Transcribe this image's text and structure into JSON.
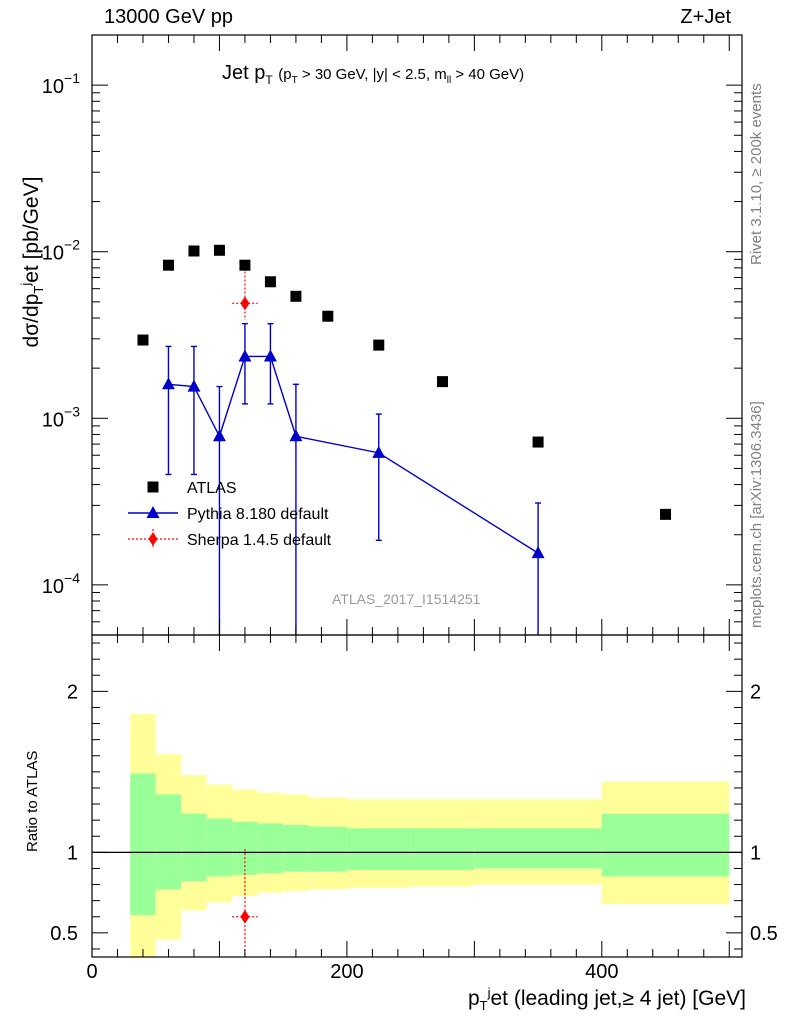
{
  "header": {
    "left": "13000 GeV pp",
    "right": "Z+Jet"
  },
  "side_labels": {
    "rivet": "Rivet 3.1.10, ≥ 200k events",
    "mcplots": "mcplots.cern.ch [arXiv:1306.3436]"
  },
  "chart_data": [
    {
      "type": "scatter",
      "panel": "main",
      "title": "Jet p_T (p_T > 30 GeV, |y| < 2.5, m_ll > 40 GeV)",
      "title_main": "Jet p",
      "title_main_sub": "T",
      "title_cond": "(p",
      "title_cond_sub": "T",
      "title_cond_rest": "> 30 GeV, |y| < 2.5, m",
      "title_cond_sub2": "ll",
      "title_cond_end": "> 40 GeV)",
      "watermark": "ATLAS_2017_I1514251",
      "ylabel": "dσ/dp_T^jet [pb/GeV]",
      "ylabel_parts": [
        "dσ/dp",
        "T",
        "j",
        "et [pb/GeV]"
      ],
      "yscale": "log",
      "ylim": [
        5e-05,
        0.2
      ],
      "xlim": [
        0,
        510
      ],
      "y_ticks": [
        {
          "value": 0.1,
          "base": "10",
          "exp": "−1"
        },
        {
          "value": 0.01,
          "base": "10",
          "exp": "−2"
        },
        {
          "value": 0.001,
          "base": "10",
          "exp": "−3"
        },
        {
          "value": 0.0001,
          "base": "10",
          "exp": "−4"
        }
      ],
      "legend_position": "lower-left",
      "series": [
        {
          "name": "ATLAS",
          "marker": "square",
          "color": "#000000",
          "x": [
            40,
            60,
            80,
            100,
            120,
            140,
            160,
            185,
            225,
            275,
            350,
            450
          ],
          "y": [
            0.00295,
            0.0083,
            0.0101,
            0.0102,
            0.0083,
            0.0066,
            0.0054,
            0.0041,
            0.00275,
            0.00166,
            0.00072,
            0.000265
          ]
        },
        {
          "name": "Pythia 8.180 default",
          "marker": "triangle",
          "color": "#0000cc",
          "x": [
            60,
            80,
            100,
            120,
            140,
            160,
            225,
            350
          ],
          "y": [
            0.0016,
            0.00155,
            0.00078,
            0.00235,
            0.00235,
            0.00078,
            0.00062,
            0.000155
          ],
          "y_low": [
            0.00046,
            0.00046,
            3e-05,
            0.00122,
            0.00122,
            3e-05,
            0.000185,
            3e-05
          ],
          "y_high": [
            0.0027,
            0.0027,
            0.00155,
            0.0037,
            0.0037,
            0.0016,
            0.00106,
            0.00031
          ],
          "x_halfwidth": [
            0,
            0,
            0,
            0,
            0,
            0,
            0,
            0
          ]
        },
        {
          "name": "Sherpa 1.4.5 default",
          "marker": "diamond",
          "color": "#ff0000",
          "x": [
            120
          ],
          "y": [
            0.0049
          ],
          "y_low": [
            0.0039
          ],
          "y_high": [
            0.0085
          ],
          "x_halfwidth": [
            10
          ]
        }
      ]
    },
    {
      "type": "area",
      "panel": "ratio",
      "ylabel": "Ratio to ATLAS",
      "xlabel": "p_T^jet (leading jet,≥ 4 jet) [GeV]",
      "xlabel_parts": [
        "p",
        "T",
        "j",
        "et (leading jet,≥ 4 jet) [GeV]"
      ],
      "xlim": [
        0,
        510
      ],
      "ylim": [
        0.35,
        2.35
      ],
      "x_ticks": [
        0,
        200,
        400
      ],
      "y_ticks": [
        0.5,
        1,
        2
      ],
      "bands": {
        "bin_edges": [
          30,
          50,
          70,
          90,
          110,
          130,
          150,
          170,
          200,
          250,
          300,
          400,
          500
        ],
        "yellow_low": [
          0.3,
          0.46,
          0.64,
          0.69,
          0.73,
          0.75,
          0.76,
          0.77,
          0.78,
          0.79,
          0.8,
          0.68
        ],
        "yellow_high": [
          1.86,
          1.61,
          1.48,
          1.42,
          1.39,
          1.37,
          1.36,
          1.34,
          1.33,
          1.33,
          1.33,
          1.44
        ],
        "green_low": [
          0.61,
          0.77,
          0.82,
          0.85,
          0.86,
          0.87,
          0.88,
          0.88,
          0.89,
          0.89,
          0.9,
          0.85
        ],
        "green_high": [
          1.49,
          1.36,
          1.24,
          1.21,
          1.19,
          1.18,
          1.17,
          1.16,
          1.15,
          1.15,
          1.15,
          1.24
        ],
        "yellow_color": "#ffff99",
        "green_color": "#99ff99"
      },
      "series": [
        {
          "name": "Sherpa 1.4.5 default",
          "marker": "diamond",
          "color": "#ff0000",
          "x": [
            120
          ],
          "y": [
            0.6
          ],
          "y_low": [
            0.35
          ],
          "y_high": [
            1.02
          ],
          "x_halfwidth": [
            10
          ]
        }
      ]
    }
  ]
}
